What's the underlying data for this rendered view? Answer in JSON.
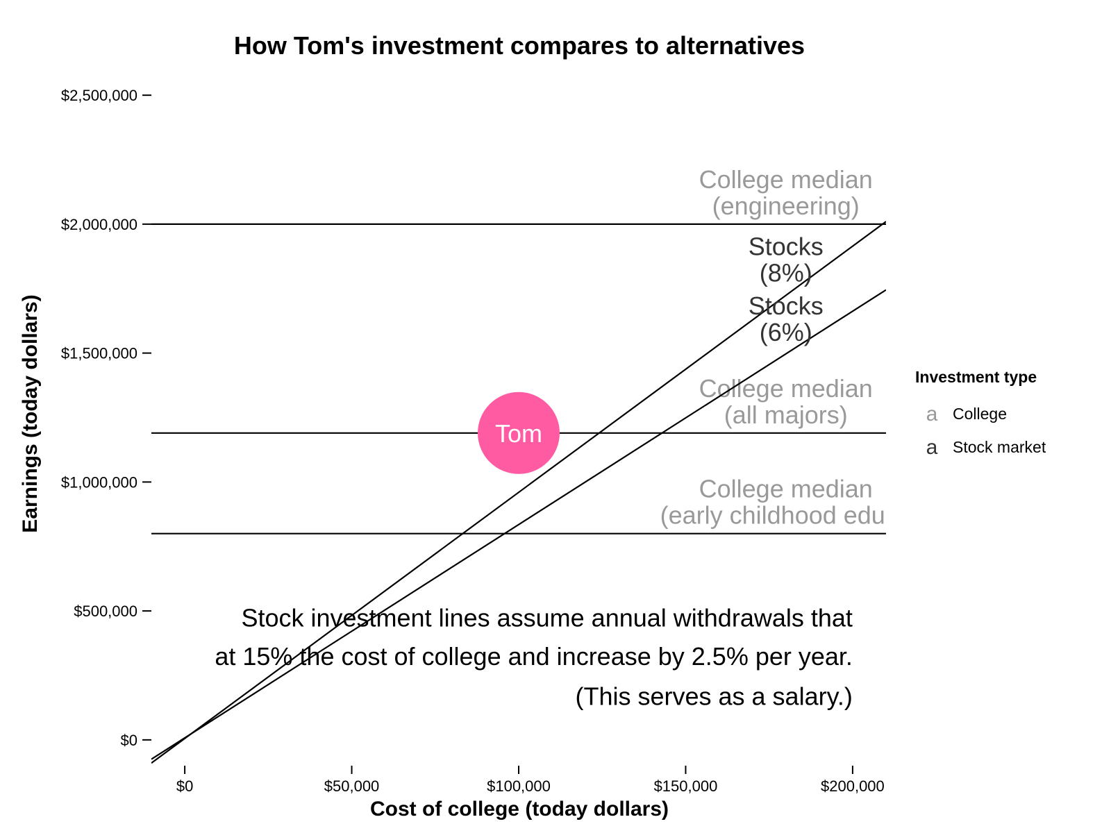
{
  "chart_data": {
    "type": "line",
    "title": "How Tom's investment compares to alternatives",
    "xlabel": "Cost of college (today dollars)",
    "ylabel": "Earnings (today dollars)",
    "xlim": [
      -10000,
      210000
    ],
    "ylim": [
      -100000,
      2600000
    ],
    "x_ticks": [
      {
        "value": 0,
        "label": "$0"
      },
      {
        "value": 50000,
        "label": "$50,000"
      },
      {
        "value": 100000,
        "label": "$100,000"
      },
      {
        "value": 150000,
        "label": "$150,000"
      },
      {
        "value": 200000,
        "label": "$200,000"
      }
    ],
    "y_ticks": [
      {
        "value": 0,
        "label": "$0"
      },
      {
        "value": 500000,
        "label": "$500,000"
      },
      {
        "value": 1000000,
        "label": "$1,000,000"
      },
      {
        "value": 1500000,
        "label": "$1,500,000"
      },
      {
        "value": 2000000,
        "label": "$2,000,000"
      },
      {
        "value": 2500000,
        "label": "$2,500,000"
      }
    ],
    "grid": false,
    "college_lines": [
      {
        "y": 2000000,
        "label_lines": [
          "College median",
          "(engineering)"
        ],
        "label_y": 2140000
      },
      {
        "y": 1190000,
        "label_lines": [
          "College median",
          "(all majors)"
        ],
        "label_y": 1330000
      },
      {
        "y": 800000,
        "label_lines": [
          "College median",
          "(early childhood educa"
        ],
        "label_y": 940000
      }
    ],
    "stock_series": [
      {
        "rate": "8%",
        "label_lines": [
          "Stocks",
          "(8%)"
        ],
        "points": [
          [
            -10000,
            -90000
          ],
          [
            210000,
            2010000
          ]
        ],
        "label_y": 1880000
      },
      {
        "rate": "6%",
        "label_lines": [
          "Stocks",
          "(6%)"
        ],
        "points": [
          [
            -10000,
            -75000
          ],
          [
            210000,
            1745000
          ]
        ],
        "label_y": 1650000
      }
    ],
    "highlight_point": {
      "label": "Tom",
      "x": 100000,
      "y": 1190000,
      "color": "#ff5ba3"
    },
    "annotation": {
      "lines": [
        "Stock investment lines assume annual withdrawals that",
        "at 15% the cost of college and increase by 2.5% per year.",
        "(This serves as a salary.)"
      ],
      "anchor_x": 200000,
      "line_ys": [
        440000,
        290000,
        135000
      ]
    },
    "label_x": 180000,
    "legend": {
      "title": "Investment type",
      "placement": "right",
      "key_glyph": "a",
      "items": [
        {
          "label": "College",
          "color": "#999999"
        },
        {
          "label": "Stock market",
          "color": "#333333"
        }
      ]
    },
    "colors": {
      "college_label": "#999999",
      "stock_label": "#333333",
      "line": "#000000"
    }
  }
}
